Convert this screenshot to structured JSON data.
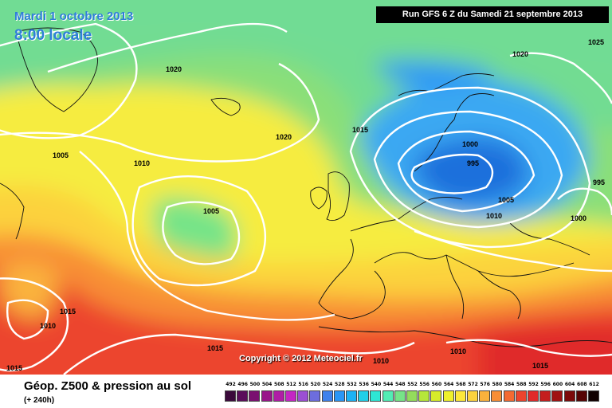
{
  "header": {
    "date": "Mardi 1 octobre 2013",
    "time": "8:00 locale",
    "run": "Run GFS 6 Z du Samedi 21 septembre 2013"
  },
  "footer": {
    "title": "Géop. Z500 & pression au sol",
    "range": "(+ 240h)",
    "copyright": "Copyright © 2012 Meteociel.fr"
  },
  "pressure_labels": [
    "1020",
    "1025",
    "1015",
    "1020",
    "1005",
    "1010",
    "1020",
    "1000",
    "995",
    "1005",
    "995",
    "1005",
    "1010",
    "1000",
    "1015",
    "1010",
    "1010",
    "1010",
    "1015",
    "1015",
    "1015"
  ],
  "scale": {
    "values": [
      "492",
      "496",
      "500",
      "504",
      "508",
      "512",
      "516",
      "520",
      "524",
      "528",
      "532",
      "536",
      "540",
      "544",
      "548",
      "552",
      "556",
      "560",
      "564",
      "568",
      "572",
      "576",
      "580",
      "584",
      "588",
      "592",
      "596",
      "600",
      "604",
      "608",
      "612"
    ],
    "colors": [
      "#3b0a3b",
      "#5a0d5a",
      "#7a1070",
      "#99168a",
      "#b01ea6",
      "#c426c4",
      "#9b4fd3",
      "#6d6ddd",
      "#3f82ec",
      "#2a96f5",
      "#1cb2f5",
      "#22cfe8",
      "#2ee6d4",
      "#52ecb4",
      "#76e488",
      "#94dc5c",
      "#b6e63a",
      "#d6ec2a",
      "#eef02c",
      "#fce83a",
      "#fcd23e",
      "#fab23c",
      "#f88e36",
      "#f46a32",
      "#ec442e",
      "#e02a2a",
      "#c41e1e",
      "#a01212",
      "#7c0a0a",
      "#560404",
      "#100000"
    ]
  }
}
